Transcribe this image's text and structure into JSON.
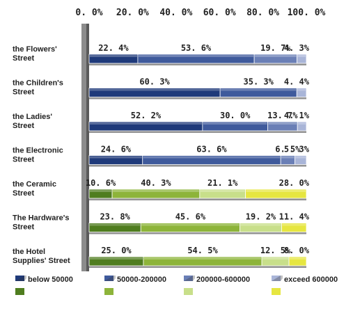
{
  "chart_data": {
    "type": "bar",
    "orientation": "horizontal",
    "stacked": "percent",
    "xlim": [
      0,
      100
    ],
    "x_tick_labels": [
      "0. 0%",
      "20. 0%",
      "40. 0%",
      "60. 0%",
      "80. 0%",
      "100. 0%"
    ],
    "categories": [
      "the Flowers' Street",
      "the Children's Street",
      "the Ladies' Street",
      "the Electronic Street",
      "the Ceramic Street",
      "The Hardware's Street",
      "the Hotel Supplies' Street"
    ],
    "category_lines": [
      [
        "the Flowers'",
        "Street"
      ],
      [
        "the Children's",
        "Street"
      ],
      [
        "the Ladies'",
        "Street"
      ],
      [
        "the Electronic",
        "Street"
      ],
      [
        "the Ceramic",
        "Street"
      ],
      [
        "The Hardware's",
        "Street"
      ],
      [
        "the Hotel",
        "Supplies' Street"
      ]
    ],
    "series": [
      {
        "name": "below 50000",
        "values": [
          22.4,
          60.3,
          52.2,
          24.6,
          10.6,
          23.8,
          25.0
        ]
      },
      {
        "name": "50000-200000",
        "values": [
          53.6,
          35.3,
          30.0,
          63.6,
          40.3,
          45.6,
          54.5
        ]
      },
      {
        "name": "200000-600000",
        "values": [
          19.7,
          0.0,
          13.7,
          6.5,
          21.1,
          19.2,
          12.5
        ]
      },
      {
        "name": "exceed 600000",
        "values": [
          4.3,
          4.4,
          4.1,
          5.3,
          28.0,
          11.4,
          8.0
        ]
      }
    ],
    "value_labels": [
      [
        "22. 4%",
        "53. 6%",
        "19. 7%",
        "4. 3%"
      ],
      [
        "60. 3%",
        "35. 3%",
        "",
        "4. 4%"
      ],
      [
        "52. 2%",
        "30. 0%",
        "13. 7%",
        "4. 1%"
      ],
      [
        "24. 6%",
        "63. 6%",
        "6. 5%",
        "5. 3%"
      ],
      [
        "10. 6%",
        "40. 3%",
        "21. 1%",
        "28. 0%"
      ],
      [
        "23. 8%",
        "45. 6%",
        "19. 2%",
        "11. 4%"
      ],
      [
        "25. 0%",
        "54. 5%",
        "12. 5%",
        "8. 0%"
      ]
    ],
    "colors": {
      "blue": [
        "#1f3a7a",
        "#3f5a9c",
        "#6a7fb6",
        "#a9b5d8"
      ],
      "green": [
        "#4f7d1f",
        "#8db43a",
        "#c8df8a",
        "#e6e640"
      ]
    },
    "bar_color_groups": [
      "blue",
      "blue",
      "blue",
      "blue",
      "green",
      "green",
      "green"
    ],
    "grid": false,
    "legend_position": "bottom"
  }
}
